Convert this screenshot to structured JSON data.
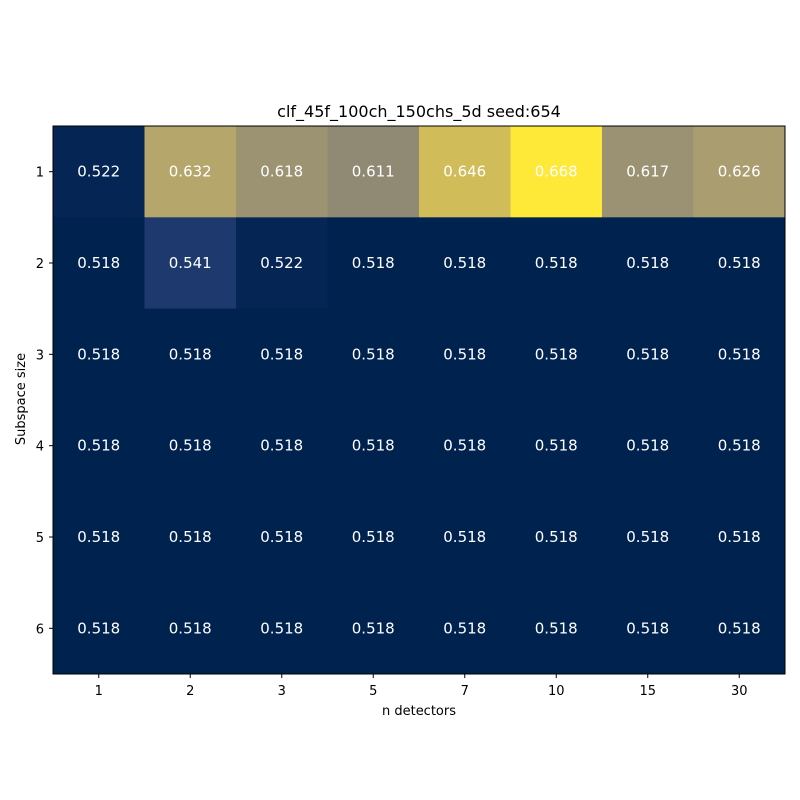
{
  "chart_data": {
    "type": "heatmap",
    "title": "clf_45f_100ch_150chs_5d seed:654",
    "xlabel": "n detectors",
    "ylabel": "Subspace size",
    "x_categories": [
      "1",
      "2",
      "3",
      "5",
      "7",
      "10",
      "15",
      "30"
    ],
    "y_categories": [
      "1",
      "2",
      "3",
      "4",
      "5",
      "6"
    ],
    "values": [
      [
        0.522,
        0.632,
        0.618,
        0.611,
        0.646,
        0.668,
        0.617,
        0.626
      ],
      [
        0.518,
        0.541,
        0.522,
        0.518,
        0.518,
        0.518,
        0.518,
        0.518
      ],
      [
        0.518,
        0.518,
        0.518,
        0.518,
        0.518,
        0.518,
        0.518,
        0.518
      ],
      [
        0.518,
        0.518,
        0.518,
        0.518,
        0.518,
        0.518,
        0.518,
        0.518
      ],
      [
        0.518,
        0.518,
        0.518,
        0.518,
        0.518,
        0.518,
        0.518,
        0.518
      ],
      [
        0.518,
        0.518,
        0.518,
        0.518,
        0.518,
        0.518,
        0.518,
        0.518
      ]
    ],
    "colormap": "cividis",
    "value_format": "3 decimals",
    "label_color": "#ffffff"
  }
}
